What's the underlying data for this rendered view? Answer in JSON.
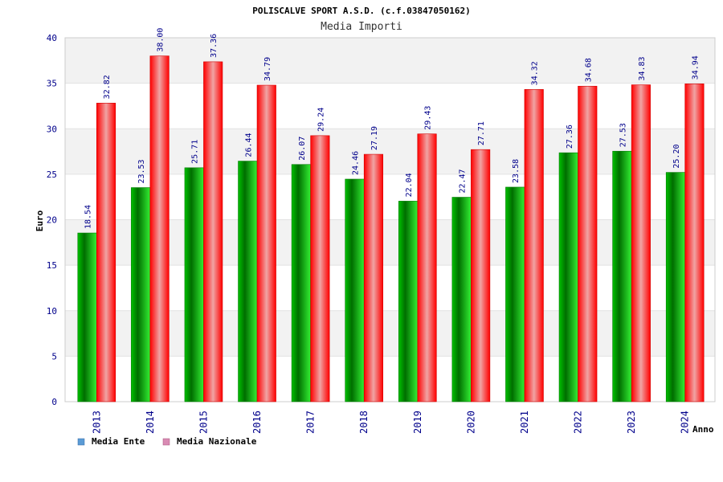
{
  "chart_data": {
    "type": "bar",
    "title": "POLISCALVE SPORT A.S.D. (c.f.03847050162)",
    "subtitle": "Media Importi",
    "xlabel": "Anno",
    "ylabel": "Euro",
    "ylim": [
      0,
      40
    ],
    "yticks": [
      0,
      5,
      10,
      15,
      20,
      25,
      30,
      35,
      40
    ],
    "grid": true,
    "legend_position": "bottom-left",
    "categories": [
      "2013",
      "2014",
      "2015",
      "2016",
      "2017",
      "2018",
      "2019",
      "2020",
      "2021",
      "2022",
      "2023",
      "2024"
    ],
    "series": [
      {
        "name": "Media Ente",
        "values": [
          18.54,
          23.53,
          25.71,
          26.44,
          26.07,
          24.46,
          22.04,
          22.47,
          23.58,
          27.36,
          27.53,
          25.2
        ],
        "labels": [
          "18.54",
          "23.53",
          "25.71",
          "26.44",
          "26.07",
          "24.46",
          "22.04",
          "22.47",
          "23.58",
          "27.36",
          "27.53",
          "25.20"
        ],
        "color": "#00b000",
        "legend_color": "#5b9bd5"
      },
      {
        "name": "Media Nazionale",
        "values": [
          32.82,
          38.0,
          37.36,
          34.79,
          29.24,
          27.19,
          29.43,
          27.71,
          34.32,
          34.68,
          34.83,
          34.94
        ],
        "labels": [
          "32.82",
          "38.00",
          "37.36",
          "34.79",
          "29.24",
          "27.19",
          "29.43",
          "27.71",
          "34.32",
          "34.68",
          "34.83",
          "34.94"
        ],
        "color": "#ff2020",
        "legend_color": "#d98bb3"
      }
    ]
  }
}
